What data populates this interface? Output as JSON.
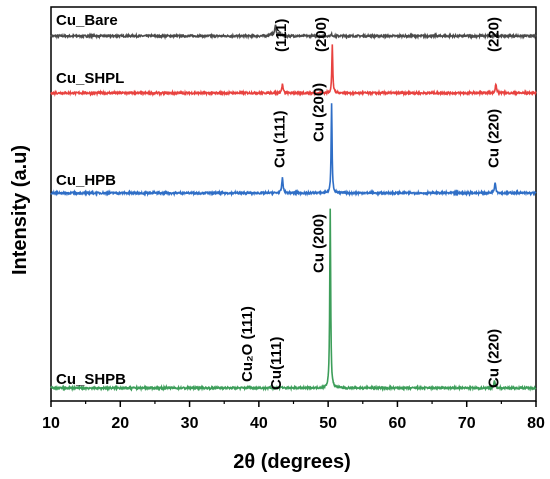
{
  "chart_data": {
    "type": "line",
    "xlabel": "2θ (degrees)",
    "ylabel": "Intensity (a.u)",
    "xlim": [
      10,
      80
    ],
    "x_ticks": [
      "10",
      "20",
      "30",
      "40",
      "50",
      "60",
      "70",
      "80"
    ],
    "y_ticks_shown": false,
    "grid": false,
    "legend": "none",
    "series": [
      {
        "name": "Cu_Bare",
        "color": "#4a4a4a",
        "offset": 0.0,
        "peaks": [
          {
            "x": 41.8,
            "h": 0.1,
            "w": 0.55
          },
          {
            "x": 42.4,
            "h": 0.72,
            "w": 0.22
          },
          {
            "x": 43.0,
            "h": 0.2,
            "w": 0.25
          },
          {
            "x": 50.5,
            "h": 0.09,
            "w": 0.25
          },
          {
            "x": 74.2,
            "h": 0.06,
            "w": 0.25
          }
        ],
        "labels": []
      },
      {
        "name": "Cu_SHPL",
        "color": "#e8423f",
        "offset": 0.0,
        "peaks": [
          {
            "x": 43.4,
            "h": 0.55,
            "w": 0.22
          },
          {
            "x": 50.6,
            "h": 3.0,
            "w": 0.16
          },
          {
            "x": 74.2,
            "h": 0.55,
            "w": 0.22
          }
        ],
        "labels": [
          {
            "text": "(111)",
            "x": 43.2
          },
          {
            "text": "(200)",
            "x": 49.0
          },
          {
            "text": "(220)",
            "x": 73.9
          }
        ]
      },
      {
        "name": "Cu_HPB",
        "color": "#2f6ec6",
        "offset": 0.0,
        "peaks": [
          {
            "x": 43.4,
            "h": 0.95,
            "w": 0.22
          },
          {
            "x": 50.5,
            "h": 5.6,
            "w": 0.16
          },
          {
            "x": 74.1,
            "h": 0.7,
            "w": 0.22
          }
        ],
        "labels": [
          {
            "text": "Cu (111)",
            "x": 43.0
          },
          {
            "text": "Cu (200)",
            "x": 48.6
          },
          {
            "text": "Cu (220)",
            "x": 73.9
          }
        ]
      },
      {
        "name": "Cu_SHPB",
        "color": "#3d9e5a",
        "offset": 0.0,
        "peaks": [
          {
            "x": 38.6,
            "h": 0.05,
            "w": 0.3
          },
          {
            "x": 43.2,
            "h": 0.08,
            "w": 0.25
          },
          {
            "x": 50.3,
            "h": 11.2,
            "w": 0.16
          },
          {
            "x": 74.0,
            "h": 0.45,
            "w": 0.22
          }
        ],
        "labels": [
          {
            "text": "Cu₂O (111)",
            "x": 38.3
          },
          {
            "text": "Cu(111)",
            "x": 42.5
          },
          {
            "text": "Cu (200)",
            "x": 48.6
          },
          {
            "text": "Cu (220)",
            "x": 73.9
          }
        ]
      }
    ]
  }
}
